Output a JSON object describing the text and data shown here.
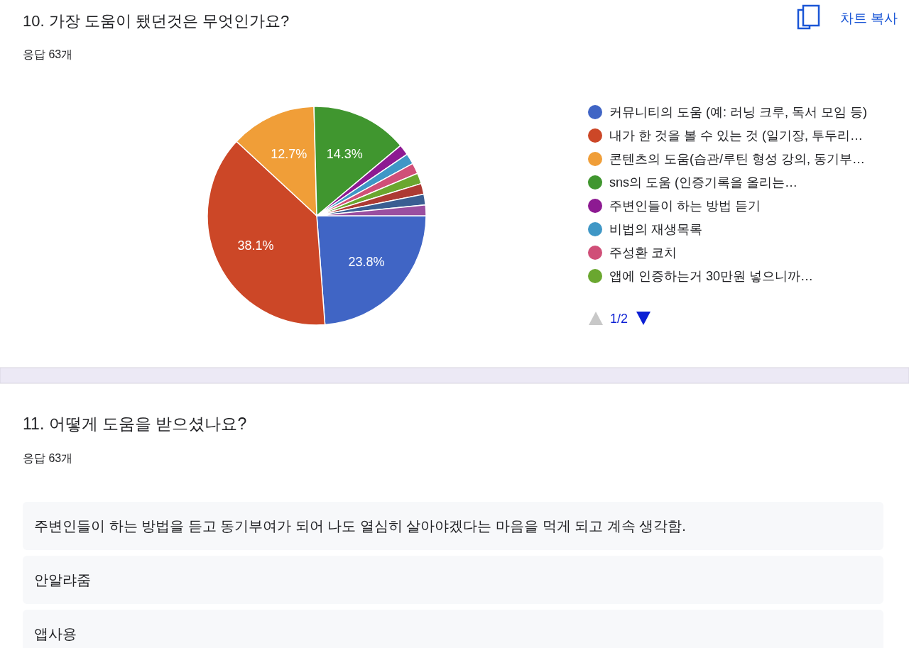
{
  "chart_data": {
    "type": "pie",
    "title": "10. 가장 도움이 됐던것은 무엇인가요?",
    "subtitle": "응답 63개",
    "categories": [
      "커뮤니티의 도움 (예: 러닝 크루, 독서 모임 등)",
      "내가 한 것을 볼 수 있는 것 (일기장, 투두리…",
      "콘텐츠의 도움(습관/루틴 형성 강의, 동기부…",
      "sns의 도움 (인증기록을 올리는…",
      "주변인들이 하는 방법 듣기",
      "비법의 재생목록",
      "주성환 코치",
      "앱에 인증하는거 30만원 넣으니까…",
      null,
      null,
      null
    ],
    "values": [
      23.8,
      38.1,
      12.7,
      14.3,
      1.586,
      1.586,
      1.586,
      1.586,
      1.586,
      1.586,
      1.586
    ],
    "colors": [
      "#4065c5",
      "#cc4727",
      "#f09e38",
      "#40962f",
      "#8d1a92",
      "#3f97c6",
      "#d04f78",
      "#6aa72f",
      "#ad3a33",
      "#3a5e92",
      "#9a4fa0"
    ],
    "value_labels": [
      "23.8%",
      "38.1%",
      "12.7%",
      "14.3%",
      null,
      null,
      null,
      null,
      null,
      null,
      null
    ],
    "legend": "right",
    "annotations": [
      "차트 복사",
      "1/2",
      "11. 어떻게 도움을 받으셨나요?",
      "응답 63개",
      "주변인들이 하는 방법을 듣고 동기부여가 되어 나도 열심히 살아야겠다는 마음을 먹게 되고 계속 생각함.",
      "안알랴줌",
      "앱사용"
    ]
  }
}
